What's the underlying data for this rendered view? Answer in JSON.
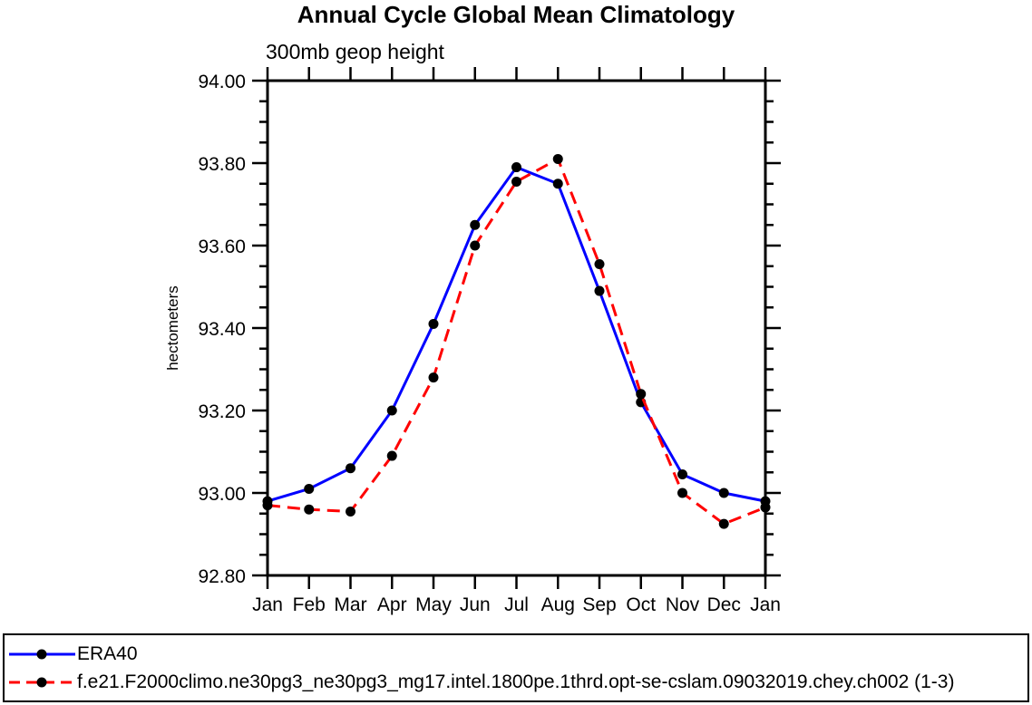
{
  "chart_data": {
    "type": "line",
    "title": "Annual Cycle Global Mean Climatology",
    "subtitle": "300mb geop height",
    "ylabel": "hectometers",
    "x_categories": [
      "Jan",
      "Feb",
      "Mar",
      "Apr",
      "May",
      "Jun",
      "Jul",
      "Aug",
      "Sep",
      "Oct",
      "Nov",
      "Dec",
      "Jan"
    ],
    "ylim": [
      92.8,
      94.0
    ],
    "y_major_ticks": [
      92.8,
      93.0,
      93.2,
      93.4,
      93.6,
      93.8,
      94.0
    ],
    "y_minor_step": 0.05,
    "y_tick_decimals": 2,
    "grid": false,
    "legend_position": "bottom-box",
    "axis_color": "#000000",
    "marker_color": "#000000",
    "series": [
      {
        "name": "ERA40",
        "color": "#0000ff",
        "line_style": "solid",
        "marker": "filled-circle",
        "values": [
          92.98,
          93.01,
          93.06,
          93.2,
          93.41,
          93.65,
          93.79,
          93.75,
          93.49,
          93.22,
          93.045,
          93.0,
          92.98
        ]
      },
      {
        "name": "f.e21.F2000climo.ne30pg3_ne30pg3_mg17.intel.1800pe.1thrd.opt-se-cslam.09032019.chey.ch002 (1-3)",
        "color": "#ff0000",
        "line_style": "dashed",
        "marker": "filled-circle",
        "values": [
          92.97,
          92.96,
          92.955,
          93.09,
          93.28,
          93.6,
          93.755,
          93.81,
          93.555,
          93.24,
          93.0,
          92.925,
          92.965
        ]
      }
    ]
  }
}
